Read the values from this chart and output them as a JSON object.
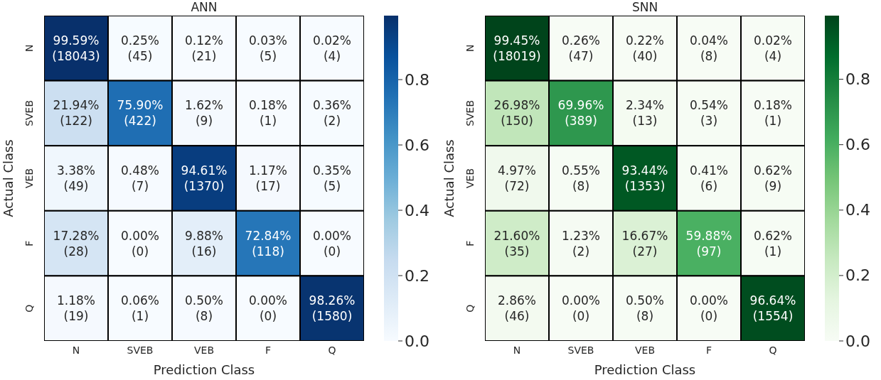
{
  "chart_data": [
    {
      "type": "heatmap",
      "title": "ANN",
      "xlabel": "Prediction Class",
      "ylabel": "Actual Class",
      "categories": [
        "N",
        "SVEB",
        "VEB",
        "F",
        "Q"
      ],
      "y_categories": [
        "N",
        "SVEB",
        "VEB",
        "F",
        "Q"
      ],
      "cells": [
        [
          0.9959,
          0.0025,
          0.0012,
          0.0003,
          0.0002
        ],
        [
          0.2194,
          0.759,
          0.0162,
          0.0018,
          0.0036
        ],
        [
          0.0338,
          0.0048,
          0.9461,
          0.0117,
          0.0035
        ],
        [
          0.1728,
          0.0,
          0.0988,
          0.7284,
          0.0
        ],
        [
          0.0118,
          0.0006,
          0.005,
          0.0,
          0.9826
        ]
      ],
      "cell_labels": [
        [
          "99.59%\n(18043)",
          "0.25%\n(45)",
          "0.12%\n(21)",
          "0.03%\n(5)",
          "0.02%\n(4)"
        ],
        [
          "21.94%\n(122)",
          "75.90%\n(422)",
          "1.62%\n(9)",
          "0.18%\n(1)",
          "0.36%\n(2)"
        ],
        [
          "3.38%\n(49)",
          "0.48%\n(7)",
          "94.61%\n(1370)",
          "1.17%\n(17)",
          "0.35%\n(5)"
        ],
        [
          "17.28%\n(28)",
          "0.00%\n(0)",
          "9.88%\n(16)",
          "72.84%\n(118)",
          "0.00%\n(0)"
        ],
        [
          "1.18%\n(19)",
          "0.06%\n(1)",
          "0.50%\n(8)",
          "0.00%\n(0)",
          "98.26%\n(1580)"
        ]
      ],
      "clim": [
        0,
        0.9959
      ],
      "cticks": [
        {
          "value": 0,
          "label": "0.0"
        },
        0.2,
        0.4,
        0.6,
        0.8
      ],
      "colors": [
        "#f7fbff",
        "#deebf7",
        "#c6dbef",
        "#9ecae1",
        "#6baed6",
        "#4292c6",
        "#2171b5",
        "#08519c",
        "#08306b"
      ]
    },
    {
      "type": "heatmap",
      "title": "SNN",
      "xlabel": "Prediction Class",
      "ylabel": "Actual Class",
      "categories": [
        "N",
        "SVEB",
        "VEB",
        "F",
        "Q"
      ],
      "y_categories": [
        "N",
        "SVEB",
        "VEB",
        "F",
        "Q"
      ],
      "cells": [
        [
          0.9945,
          0.0026,
          0.0022,
          0.0004,
          0.0002
        ],
        [
          0.2698,
          0.6996,
          0.0234,
          0.0054,
          0.0018
        ],
        [
          0.0497,
          0.0055,
          0.9344,
          0.0041,
          0.0062
        ],
        [
          0.216,
          0.0123,
          0.1667,
          0.5988,
          0.0062
        ],
        [
          0.0286,
          0.0,
          0.005,
          0.0,
          0.9664
        ]
      ],
      "cell_labels": [
        [
          "99.45%\n(18019)",
          "0.26%\n(47)",
          "0.22%\n(40)",
          "0.04%\n(8)",
          "0.02%\n(4)"
        ],
        [
          "26.98%\n(150)",
          "69.96%\n(389)",
          "2.34%\n(13)",
          "0.54%\n(3)",
          "0.18%\n(1)"
        ],
        [
          "4.97%\n(72)",
          "0.55%\n(8)",
          "93.44%\n(1353)",
          "0.41%\n(6)",
          "0.62%\n(9)"
        ],
        [
          "21.60%\n(35)",
          "1.23%\n(2)",
          "16.67%\n(27)",
          "59.88%\n(97)",
          "0.62%\n(1)"
        ],
        [
          "2.86%\n(46)",
          "0.00%\n(0)",
          "0.50%\n(8)",
          "0.00%\n(0)",
          "96.64%\n(1554)"
        ]
      ],
      "clim": [
        0,
        0.9945
      ],
      "cticks": [
        {
          "value": 0,
          "label": "0.0"
        },
        0.2,
        0.4,
        0.6,
        0.8
      ],
      "colors": [
        "#f7fcf5",
        "#e5f5e0",
        "#c7e9c0",
        "#a1d99b",
        "#74c476",
        "#41ab5d",
        "#238b45",
        "#006d2c",
        "#00441b"
      ]
    }
  ]
}
